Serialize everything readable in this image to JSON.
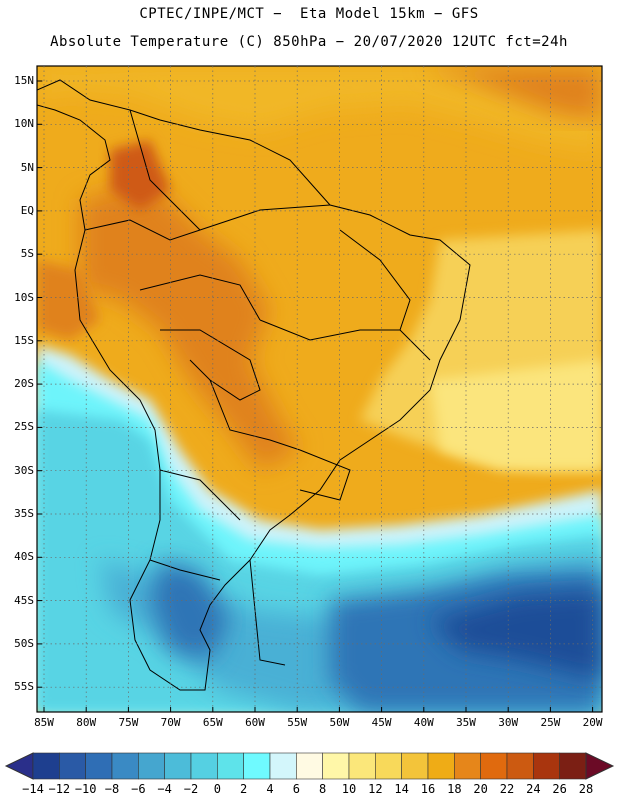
{
  "title_line1": "CPTEC/INPE/MCT −  Eta Model 15km − GFS",
  "title_line2": "Absolute Temperature (C) 850hPa − 20/07/2020 12UTC fct=24h",
  "lat_labels": [
    "15N",
    "10N",
    "5N",
    "EQ",
    "5S",
    "10S",
    "15S",
    "20S",
    "25S",
    "30S",
    "35S",
    "40S",
    "45S",
    "50S",
    "55S"
  ],
  "lon_labels": [
    "85W",
    "80W",
    "75W",
    "70W",
    "65W",
    "60W",
    "55W",
    "50W",
    "45W",
    "40W",
    "35W",
    "30W",
    "25W",
    "20W"
  ],
  "colorbar": {
    "labels": [
      "-14",
      "-12",
      "-10",
      "-8",
      "-6",
      "-4",
      "-2",
      "0",
      "2",
      "4",
      "6",
      "8",
      "10",
      "12",
      "14",
      "16",
      "18",
      "20",
      "22",
      "24",
      "26",
      "28"
    ],
    "colors": [
      "#1e3f8f",
      "#2a5aa6",
      "#2f6eb5",
      "#3a8ac4",
      "#45a6cf",
      "#4cbcd9",
      "#55d0e2",
      "#5ee3ea",
      "#6ffaff",
      "#d3f6fb",
      "#fffae3",
      "#fff7a8",
      "#fbe77a",
      "#f8d95a",
      "#f3c43a",
      "#efac16",
      "#e6861a",
      "#e06a0e",
      "#cc5a11",
      "#a9350e",
      "#7b1f14"
    ],
    "under_color": "#2a2f8a",
    "over_color": "#6b0a26"
  },
  "map_colors": {
    "deep_cold": "#1e4e98",
    "cold": "#2e74b6",
    "cool": "#4ab0d5",
    "mild": "#58d4e4",
    "cyan": "#6ef4fb",
    "pale": "#cdf3fa",
    "cream": "#fff7da",
    "yellow": "#fbe57d",
    "warm_yellow": "#f6d056",
    "gold": "#f1b726",
    "orange": "#eba41a",
    "dark_orange": "#e0821c",
    "red_orange": "#cf5a18"
  }
}
